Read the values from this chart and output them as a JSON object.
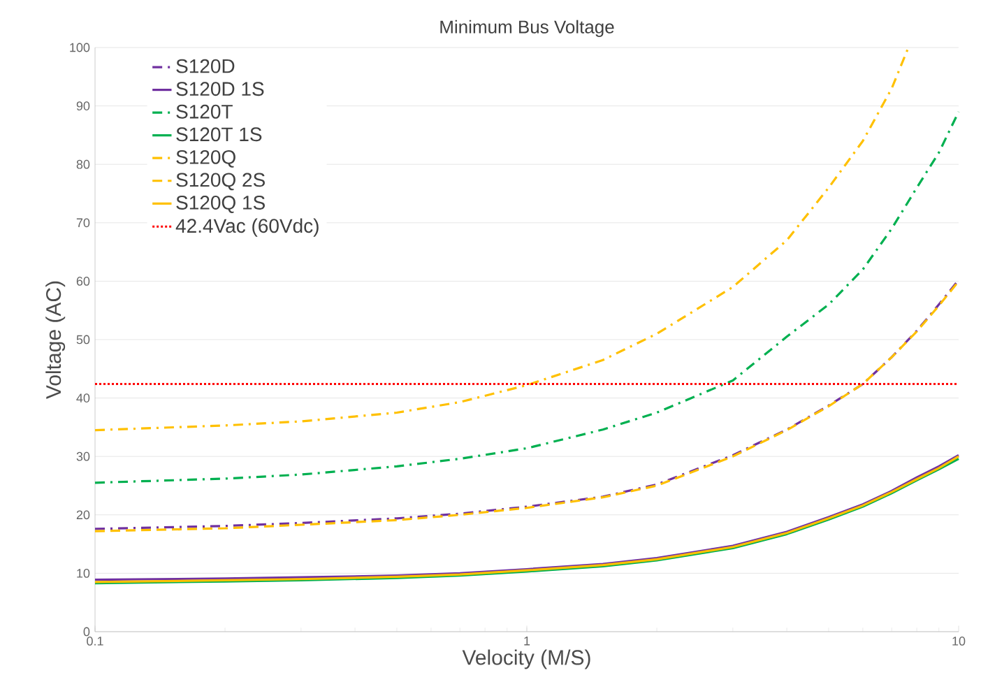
{
  "chart_data": {
    "type": "line",
    "title": "Minimum Bus Voltage",
    "xlabel": "Velocity (M/S)",
    "ylabel": "Voltage (AC)",
    "log": "x",
    "xlim": [
      0.1,
      10
    ],
    "xticks": [
      0.1,
      1,
      10
    ],
    "ylim": [
      0,
      100
    ],
    "yticks": [
      0,
      10,
      20,
      30,
      40,
      50,
      60,
      70,
      80,
      90,
      100
    ],
    "grid": "y",
    "legend": "top left",
    "marker": "none",
    "x": [
      0.1,
      0.2,
      0.3,
      0.5,
      0.7,
      1,
      1.5,
      2,
      3,
      4,
      5,
      6,
      7,
      8,
      9,
      10
    ],
    "series": [
      {
        "name": "S120D",
        "color": "#7030a0",
        "line_style": "dashdot",
        "values": [
          17.6,
          18.1,
          18.6,
          19.4,
          20.2,
          21.4,
          23.1,
          25.2,
          30.2,
          34.6,
          38.7,
          42.4,
          47,
          51.5,
          56,
          60.2
        ]
      },
      {
        "name": "S120D 1S",
        "color": "#7030a0",
        "line_style": "solid",
        "values": [
          8.9,
          9.1,
          9.3,
          9.6,
          10,
          10.7,
          11.6,
          12.6,
          14.7,
          17.1,
          19.6,
          21.8,
          24.1,
          26.4,
          28.3,
          30.2
        ]
      },
      {
        "name": "S120T",
        "color": "#00b050",
        "line_style": "dashdot",
        "values": [
          25.5,
          26.2,
          26.9,
          28.3,
          29.6,
          31.4,
          34.6,
          37.5,
          43,
          50.5,
          56,
          62,
          69,
          76,
          82,
          89
        ]
      },
      {
        "name": "S120T 1S",
        "color": "#00b050",
        "line_style": "solid",
        "values": [
          8.3,
          8.6,
          8.8,
          9.2,
          9.6,
          10.3,
          11.2,
          12.2,
          14.3,
          16.7,
          19.2,
          21.4,
          23.7,
          25.9,
          27.8,
          29.6
        ]
      },
      {
        "name": "S120Q",
        "color": "#ffc000",
        "line_style": "dashdot",
        "x": [
          0.1,
          0.2,
          0.3,
          0.5,
          0.7,
          1,
          1.5,
          2,
          3,
          4,
          5,
          6,
          7,
          7.65
        ],
        "values": [
          34.5,
          35.3,
          36,
          37.5,
          39.3,
          42.2,
          46.5,
          51,
          59,
          67,
          76,
          84,
          93,
          100
        ]
      },
      {
        "name": "S120Q 2S",
        "color": "#ffc000",
        "line_style": "dashed",
        "values": [
          17.2,
          17.7,
          18.3,
          19.1,
          20,
          21.2,
          23,
          25,
          30,
          34.5,
          38.6,
          42.4,
          47,
          51.4,
          55.8,
          60
        ]
      },
      {
        "name": "S120Q 1S",
        "color": "#ffc000",
        "line_style": "solid",
        "values": [
          8.5,
          8.8,
          9,
          9.4,
          9.8,
          10.5,
          11.4,
          12.4,
          14.5,
          16.9,
          19.4,
          21.6,
          23.9,
          26.1,
          28,
          30
        ]
      }
    ],
    "ref_lines": [
      {
        "axis": "y",
        "value": 42.4,
        "label": "42.4Vac (60Vdc)",
        "color": "#ff0000",
        "line_style": "dotted"
      }
    ]
  }
}
